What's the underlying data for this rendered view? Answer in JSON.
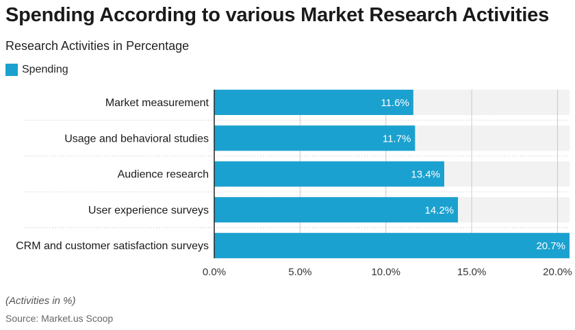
{
  "header": {
    "title": "Spending According to various Market Research Activities",
    "subtitle": "Research Activities in Percentage"
  },
  "legend": {
    "label": "Spending"
  },
  "footer": {
    "note": "(Activities in %)",
    "source": "Source: Market.us Scoop"
  },
  "colors": {
    "bar": "#1ba1cf",
    "track": "#f2f2f2",
    "grid": "#c8c8c8",
    "axis": "#222222",
    "label_on_bar": "#ffffff"
  },
  "chart_data": {
    "type": "bar",
    "orientation": "horizontal",
    "title": "Spending According to various Market Research Activities",
    "subtitle": "Research Activities in Percentage",
    "categories": [
      "Market measurement",
      "Usage and behavioral studies",
      "Audience research",
      "User experience surveys",
      "CRM and customer satisfaction surveys"
    ],
    "series": [
      {
        "name": "Spending",
        "values": [
          11.6,
          11.7,
          13.4,
          14.2,
          20.7
        ],
        "labels": [
          "11.6%",
          "11.7%",
          "13.4%",
          "14.2%",
          "20.7%"
        ]
      }
    ],
    "xlim": [
      0,
      20.7
    ],
    "xticks": [
      0,
      5,
      10,
      15,
      20
    ],
    "xtick_labels": [
      "0.0%",
      "5.0%",
      "10.0%",
      "15.0%",
      "20.0%"
    ],
    "grid": true,
    "legend_position": "top-left"
  }
}
